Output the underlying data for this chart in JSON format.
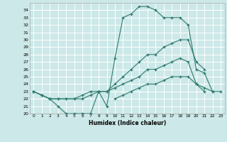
{
  "xlabel": "Humidex (Indice chaleur)",
  "bg_color": "#cce8e8",
  "grid_color": "#ffffff",
  "line_color": "#2d7a6e",
  "xlim": [
    -0.5,
    23.5
  ],
  "ylim": [
    20,
    35
  ],
  "xticks": [
    0,
    1,
    2,
    3,
    4,
    5,
    6,
    7,
    8,
    9,
    10,
    11,
    12,
    13,
    14,
    15,
    16,
    17,
    18,
    19,
    20,
    21,
    22,
    23
  ],
  "yticks": [
    20,
    21,
    22,
    23,
    24,
    25,
    26,
    27,
    28,
    29,
    30,
    31,
    32,
    33,
    34
  ],
  "line1_x": [
    0,
    1,
    2,
    3,
    4,
    5,
    6,
    7,
    8,
    9,
    10,
    11,
    12,
    13,
    14,
    15,
    16,
    17,
    18,
    19,
    20,
    21,
    22
  ],
  "line1_y": [
    23,
    22.5,
    22,
    21,
    20,
    20,
    20,
    20,
    23,
    21,
    27.5,
    33,
    33.5,
    34.5,
    34.5,
    34,
    33,
    33,
    33,
    32,
    26,
    25.5,
    23
  ],
  "line2_x": [
    0,
    1,
    2,
    3,
    4,
    5,
    6,
    7,
    8,
    9,
    10,
    11,
    12,
    13,
    14,
    15,
    16,
    17,
    18,
    19,
    20,
    21
  ],
  "line2_y": [
    23,
    22.5,
    22,
    22,
    22,
    22,
    22.5,
    23,
    23,
    23,
    24,
    25,
    26,
    27,
    28,
    28,
    29,
    29.5,
    30,
    30,
    27,
    26
  ],
  "line3_x": [
    0,
    1,
    2,
    3,
    4,
    5,
    6,
    7,
    8,
    9,
    10,
    11,
    12,
    13,
    14,
    15,
    16,
    17,
    18,
    19,
    20,
    21
  ],
  "line3_y": [
    23,
    22.5,
    22,
    22,
    22,
    22,
    22,
    22.5,
    23,
    23,
    23.5,
    24,
    24.5,
    25,
    26,
    26,
    26.5,
    27,
    27.5,
    27,
    24,
    23
  ],
  "line4_x": [
    10,
    11,
    12,
    13,
    14,
    15,
    16,
    17,
    18,
    19,
    20,
    21,
    22,
    23
  ],
  "line4_y": [
    22,
    22.5,
    23,
    23.5,
    24,
    24,
    24.5,
    25,
    25,
    25,
    24,
    23.5,
    23,
    23
  ]
}
